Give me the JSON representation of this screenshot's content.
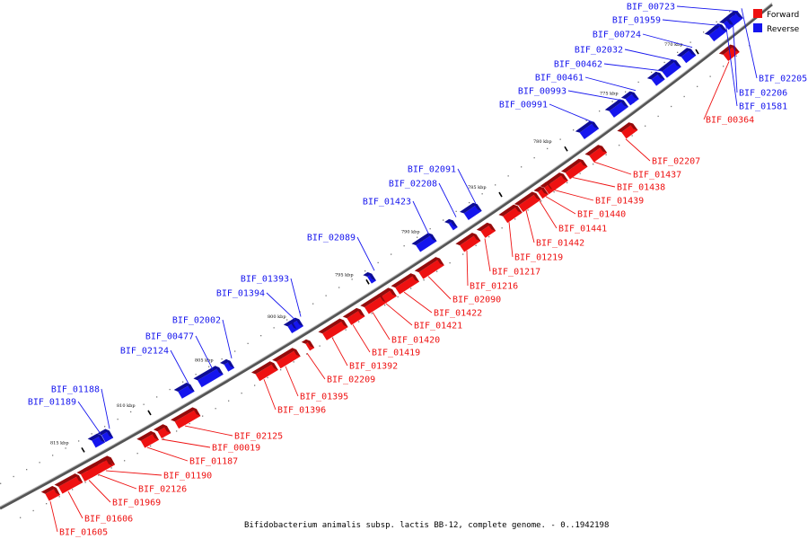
{
  "caption": "Bifidobacterium animalis subsp. lactis BB-12, complete genome. - 0..1942198",
  "legend": [
    {
      "label": "Forward",
      "color": "#ee1111"
    },
    {
      "label": "Reverse",
      "color": "#1515ee"
    }
  ],
  "colors": {
    "forward": "#ee1111",
    "reverse": "#1515ee",
    "backbone": "#666666"
  },
  "ticks": [
    "815 kbp",
    "810 kbp",
    "805 kbp",
    "800 kbp",
    "795 kbp",
    "790 kbp",
    "785 kbp",
    "780 kbp",
    "775 kbp",
    "770 kbp"
  ],
  "forward_genes": [
    "BIF_01605",
    "BIF_01606",
    "BIF_01969",
    "BIF_02126",
    "BIF_01190",
    "BIF_01187",
    "BIF_00019",
    "BIF_02125",
    "BIF_01396",
    "BIF_01395",
    "BIF_02209",
    "BIF_01392",
    "BIF_01419",
    "BIF_01420",
    "BIF_01421",
    "BIF_01422",
    "BIF_02090",
    "BIF_01216",
    "BIF_01217",
    "BIF_01219",
    "BIF_01442",
    "BIF_01441",
    "BIF_01440",
    "BIF_01439",
    "BIF_01438",
    "BIF_01437",
    "BIF_02207",
    "BIF_00364"
  ],
  "reverse_genes": [
    "BIF_01189",
    "BIF_01188",
    "BIF_02124",
    "BIF_00477",
    "BIF_02002",
    "BIF_01394",
    "BIF_01393",
    "BIF_02089",
    "BIF_01423",
    "BIF_02208",
    "BIF_02091",
    "BIF_00991",
    "BIF_00993",
    "BIF_00461",
    "BIF_00462",
    "BIF_02032",
    "BIF_00724",
    "BIF_01959",
    "BIF_00723",
    "BIF_01581",
    "BIF_02206",
    "BIF_02205"
  ]
}
